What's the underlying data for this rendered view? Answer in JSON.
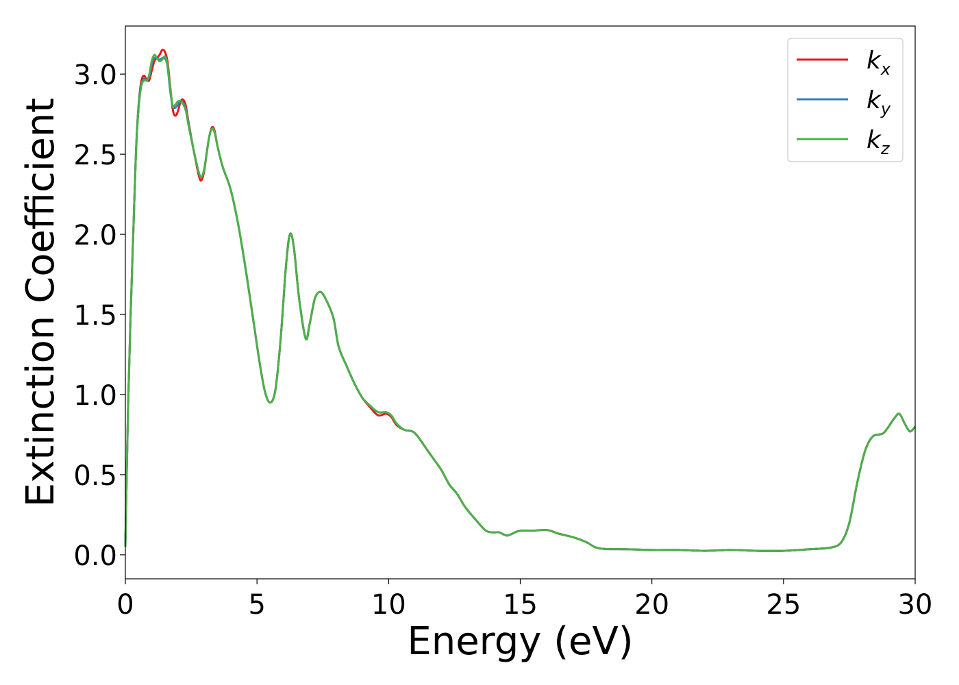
{
  "chart_data": {
    "type": "line",
    "title": "",
    "xlabel": "Energy (eV)",
    "ylabel": "Extinction Coefficient",
    "xlim": [
      0,
      30
    ],
    "ylim": [
      -0.15,
      3.3
    ],
    "xticks": [
      0,
      5,
      10,
      15,
      20,
      25,
      30
    ],
    "xtick_labels": [
      "0",
      "5",
      "10",
      "15",
      "20",
      "25",
      "30"
    ],
    "yticks": [
      0.0,
      0.5,
      1.0,
      1.5,
      2.0,
      2.5,
      3.0
    ],
    "ytick_labels": [
      "0.0",
      "0.5",
      "1.0",
      "1.5",
      "2.0",
      "2.5",
      "3.0"
    ],
    "grid": false,
    "legend_position": "top-right",
    "series": [
      {
        "name": "k_x",
        "label_base": "k",
        "label_sub": "x",
        "color": "#e41a1c",
        "points": [
          [
            0,
            0.05
          ],
          [
            0.1,
            0.9
          ],
          [
            0.2,
            1.5
          ],
          [
            0.3,
            2.0
          ],
          [
            0.4,
            2.5
          ],
          [
            0.5,
            2.8
          ],
          [
            0.6,
            2.95
          ],
          [
            0.7,
            2.99
          ],
          [
            0.8,
            2.97
          ],
          [
            0.9,
            2.96
          ],
          [
            1.0,
            3.02
          ],
          [
            1.1,
            3.08
          ],
          [
            1.2,
            3.1
          ],
          [
            1.3,
            3.12
          ],
          [
            1.4,
            3.15
          ],
          [
            1.5,
            3.14
          ],
          [
            1.6,
            3.08
          ],
          [
            1.7,
            2.93
          ],
          [
            1.8,
            2.78
          ],
          [
            1.9,
            2.74
          ],
          [
            2.0,
            2.77
          ],
          [
            2.1,
            2.83
          ],
          [
            2.2,
            2.84
          ],
          [
            2.3,
            2.8
          ],
          [
            2.4,
            2.7
          ],
          [
            2.6,
            2.52
          ],
          [
            2.8,
            2.36
          ],
          [
            2.9,
            2.34
          ],
          [
            3.0,
            2.4
          ],
          [
            3.1,
            2.52
          ],
          [
            3.2,
            2.62
          ],
          [
            3.3,
            2.67
          ],
          [
            3.4,
            2.64
          ],
          [
            3.5,
            2.55
          ],
          [
            3.7,
            2.42
          ],
          [
            4.0,
            2.28
          ],
          [
            4.3,
            2.05
          ],
          [
            4.6,
            1.75
          ],
          [
            4.9,
            1.42
          ],
          [
            5.1,
            1.2
          ],
          [
            5.3,
            1.02
          ],
          [
            5.5,
            0.95
          ],
          [
            5.7,
            1.03
          ],
          [
            5.9,
            1.35
          ],
          [
            6.1,
            1.8
          ],
          [
            6.25,
            2.0
          ],
          [
            6.4,
            1.92
          ],
          [
            6.6,
            1.6
          ],
          [
            6.85,
            1.35
          ],
          [
            7.0,
            1.44
          ],
          [
            7.2,
            1.6
          ],
          [
            7.4,
            1.64
          ],
          [
            7.6,
            1.6
          ],
          [
            7.9,
            1.48
          ],
          [
            8.1,
            1.3
          ],
          [
            8.4,
            1.18
          ],
          [
            8.7,
            1.07
          ],
          [
            9.0,
            0.98
          ],
          [
            9.3,
            0.92
          ],
          [
            9.6,
            0.87
          ],
          [
            9.9,
            0.88
          ],
          [
            10.1,
            0.86
          ],
          [
            10.3,
            0.81
          ],
          [
            10.6,
            0.78
          ],
          [
            10.9,
            0.77
          ],
          [
            11.1,
            0.74
          ],
          [
            11.4,
            0.67
          ],
          [
            11.7,
            0.6
          ],
          [
            12.0,
            0.53
          ],
          [
            12.3,
            0.44
          ],
          [
            12.6,
            0.38
          ],
          [
            12.9,
            0.3
          ],
          [
            13.3,
            0.22
          ],
          [
            13.7,
            0.15
          ],
          [
            14.0,
            0.14
          ],
          [
            14.2,
            0.14
          ],
          [
            14.5,
            0.12
          ],
          [
            14.8,
            0.14
          ],
          [
            15.0,
            0.15
          ],
          [
            15.5,
            0.15
          ],
          [
            16.0,
            0.155
          ],
          [
            16.5,
            0.13
          ],
          [
            17.0,
            0.11
          ],
          [
            17.5,
            0.08
          ],
          [
            18.0,
            0.04
          ],
          [
            19.0,
            0.035
          ],
          [
            20.0,
            0.03
          ],
          [
            21.0,
            0.03
          ],
          [
            22.0,
            0.025
          ],
          [
            23.0,
            0.03
          ],
          [
            24.0,
            0.025
          ],
          [
            25.0,
            0.025
          ],
          [
            26.0,
            0.035
          ],
          [
            26.8,
            0.045
          ],
          [
            27.2,
            0.08
          ],
          [
            27.5,
            0.2
          ],
          [
            27.8,
            0.45
          ],
          [
            28.1,
            0.65
          ],
          [
            28.4,
            0.74
          ],
          [
            28.8,
            0.76
          ],
          [
            29.2,
            0.85
          ],
          [
            29.4,
            0.88
          ],
          [
            29.6,
            0.82
          ],
          [
            29.8,
            0.77
          ],
          [
            30.0,
            0.8
          ]
        ]
      },
      {
        "name": "k_y",
        "label_base": "k",
        "label_sub": "y",
        "color": "#377eb8",
        "points": [
          [
            0,
            0.05
          ],
          [
            0.1,
            0.9
          ],
          [
            0.2,
            1.5
          ],
          [
            0.3,
            2.0
          ],
          [
            0.4,
            2.5
          ],
          [
            0.5,
            2.8
          ],
          [
            0.6,
            2.93
          ],
          [
            0.7,
            2.97
          ],
          [
            0.8,
            2.96
          ],
          [
            0.9,
            2.98
          ],
          [
            1.0,
            3.06
          ],
          [
            1.1,
            3.1
          ],
          [
            1.2,
            3.1
          ],
          [
            1.3,
            3.09
          ],
          [
            1.4,
            3.1
          ],
          [
            1.5,
            3.1
          ],
          [
            1.6,
            3.05
          ],
          [
            1.7,
            2.9
          ],
          [
            1.8,
            2.8
          ],
          [
            1.9,
            2.79
          ],
          [
            2.0,
            2.81
          ],
          [
            2.1,
            2.83
          ],
          [
            2.2,
            2.82
          ],
          [
            2.3,
            2.78
          ],
          [
            2.4,
            2.69
          ],
          [
            2.6,
            2.52
          ],
          [
            2.8,
            2.38
          ],
          [
            2.9,
            2.36
          ],
          [
            3.0,
            2.41
          ],
          [
            3.1,
            2.52
          ],
          [
            3.2,
            2.62
          ],
          [
            3.3,
            2.66
          ],
          [
            3.4,
            2.63
          ],
          [
            3.5,
            2.55
          ],
          [
            3.7,
            2.42
          ],
          [
            4.0,
            2.28
          ],
          [
            4.3,
            2.05
          ],
          [
            4.6,
            1.75
          ],
          [
            4.9,
            1.42
          ],
          [
            5.1,
            1.2
          ],
          [
            5.3,
            1.02
          ],
          [
            5.5,
            0.95
          ],
          [
            5.7,
            1.03
          ],
          [
            5.9,
            1.35
          ],
          [
            6.1,
            1.8
          ],
          [
            6.25,
            2.0
          ],
          [
            6.4,
            1.92
          ],
          [
            6.6,
            1.6
          ],
          [
            6.85,
            1.35
          ],
          [
            7.0,
            1.44
          ],
          [
            7.2,
            1.6
          ],
          [
            7.4,
            1.64
          ],
          [
            7.6,
            1.6
          ],
          [
            7.9,
            1.48
          ],
          [
            8.1,
            1.3
          ],
          [
            8.4,
            1.18
          ],
          [
            8.7,
            1.07
          ],
          [
            9.0,
            0.98
          ],
          [
            9.3,
            0.93
          ],
          [
            9.6,
            0.89
          ],
          [
            9.9,
            0.89
          ],
          [
            10.1,
            0.87
          ],
          [
            10.3,
            0.82
          ],
          [
            10.6,
            0.78
          ],
          [
            10.9,
            0.77
          ],
          [
            11.1,
            0.74
          ],
          [
            11.4,
            0.67
          ],
          [
            11.7,
            0.6
          ],
          [
            12.0,
            0.53
          ],
          [
            12.3,
            0.44
          ],
          [
            12.6,
            0.38
          ],
          [
            12.9,
            0.3
          ],
          [
            13.3,
            0.22
          ],
          [
            13.7,
            0.15
          ],
          [
            14.0,
            0.14
          ],
          [
            14.2,
            0.14
          ],
          [
            14.5,
            0.12
          ],
          [
            14.8,
            0.14
          ],
          [
            15.0,
            0.15
          ],
          [
            15.5,
            0.15
          ],
          [
            16.0,
            0.155
          ],
          [
            16.5,
            0.13
          ],
          [
            17.0,
            0.11
          ],
          [
            17.5,
            0.08
          ],
          [
            18.0,
            0.04
          ],
          [
            19.0,
            0.035
          ],
          [
            20.0,
            0.03
          ],
          [
            21.0,
            0.03
          ],
          [
            22.0,
            0.025
          ],
          [
            23.0,
            0.03
          ],
          [
            24.0,
            0.025
          ],
          [
            25.0,
            0.025
          ],
          [
            26.0,
            0.035
          ],
          [
            26.8,
            0.045
          ],
          [
            27.2,
            0.08
          ],
          [
            27.5,
            0.2
          ],
          [
            27.8,
            0.45
          ],
          [
            28.1,
            0.65
          ],
          [
            28.4,
            0.74
          ],
          [
            28.8,
            0.76
          ],
          [
            29.2,
            0.85
          ],
          [
            29.4,
            0.88
          ],
          [
            29.6,
            0.82
          ],
          [
            29.8,
            0.77
          ],
          [
            30.0,
            0.8
          ]
        ]
      },
      {
        "name": "k_z",
        "label_base": "k",
        "label_sub": "z",
        "color": "#4daf4a",
        "points": [
          [
            0,
            0.05
          ],
          [
            0.1,
            0.9
          ],
          [
            0.2,
            1.5
          ],
          [
            0.3,
            2.0
          ],
          [
            0.4,
            2.5
          ],
          [
            0.5,
            2.78
          ],
          [
            0.6,
            2.92
          ],
          [
            0.7,
            2.96
          ],
          [
            0.8,
            2.96
          ],
          [
            0.9,
            2.99
          ],
          [
            1.0,
            3.08
          ],
          [
            1.1,
            3.12
          ],
          [
            1.2,
            3.1
          ],
          [
            1.3,
            3.08
          ],
          [
            1.4,
            3.09
          ],
          [
            1.5,
            3.11
          ],
          [
            1.6,
            3.06
          ],
          [
            1.7,
            2.92
          ],
          [
            1.8,
            2.8
          ],
          [
            1.9,
            2.81
          ],
          [
            2.0,
            2.83
          ],
          [
            2.1,
            2.83
          ],
          [
            2.2,
            2.81
          ],
          [
            2.3,
            2.77
          ],
          [
            2.4,
            2.68
          ],
          [
            2.6,
            2.52
          ],
          [
            2.8,
            2.38
          ],
          [
            2.9,
            2.36
          ],
          [
            3.0,
            2.41
          ],
          [
            3.1,
            2.52
          ],
          [
            3.2,
            2.62
          ],
          [
            3.3,
            2.66
          ],
          [
            3.4,
            2.63
          ],
          [
            3.5,
            2.55
          ],
          [
            3.7,
            2.42
          ],
          [
            4.0,
            2.28
          ],
          [
            4.3,
            2.05
          ],
          [
            4.6,
            1.75
          ],
          [
            4.9,
            1.42
          ],
          [
            5.1,
            1.2
          ],
          [
            5.3,
            1.02
          ],
          [
            5.5,
            0.95
          ],
          [
            5.7,
            1.03
          ],
          [
            5.9,
            1.35
          ],
          [
            6.1,
            1.8
          ],
          [
            6.25,
            2.0
          ],
          [
            6.4,
            1.92
          ],
          [
            6.6,
            1.6
          ],
          [
            6.85,
            1.35
          ],
          [
            7.0,
            1.44
          ],
          [
            7.2,
            1.6
          ],
          [
            7.4,
            1.64
          ],
          [
            7.6,
            1.6
          ],
          [
            7.9,
            1.48
          ],
          [
            8.1,
            1.3
          ],
          [
            8.4,
            1.18
          ],
          [
            8.7,
            1.07
          ],
          [
            9.0,
            0.98
          ],
          [
            9.3,
            0.93
          ],
          [
            9.6,
            0.89
          ],
          [
            9.9,
            0.89
          ],
          [
            10.1,
            0.87
          ],
          [
            10.3,
            0.82
          ],
          [
            10.6,
            0.78
          ],
          [
            10.9,
            0.77
          ],
          [
            11.1,
            0.74
          ],
          [
            11.4,
            0.67
          ],
          [
            11.7,
            0.6
          ],
          [
            12.0,
            0.53
          ],
          [
            12.3,
            0.44
          ],
          [
            12.6,
            0.38
          ],
          [
            12.9,
            0.3
          ],
          [
            13.3,
            0.22
          ],
          [
            13.7,
            0.15
          ],
          [
            14.0,
            0.14
          ],
          [
            14.2,
            0.14
          ],
          [
            14.5,
            0.12
          ],
          [
            14.8,
            0.14
          ],
          [
            15.0,
            0.15
          ],
          [
            15.5,
            0.15
          ],
          [
            16.0,
            0.155
          ],
          [
            16.5,
            0.13
          ],
          [
            17.0,
            0.11
          ],
          [
            17.5,
            0.08
          ],
          [
            18.0,
            0.04
          ],
          [
            19.0,
            0.035
          ],
          [
            20.0,
            0.03
          ],
          [
            21.0,
            0.03
          ],
          [
            22.0,
            0.025
          ],
          [
            23.0,
            0.03
          ],
          [
            24.0,
            0.025
          ],
          [
            25.0,
            0.025
          ],
          [
            26.0,
            0.035
          ],
          [
            26.8,
            0.045
          ],
          [
            27.2,
            0.08
          ],
          [
            27.5,
            0.2
          ],
          [
            27.8,
            0.45
          ],
          [
            28.1,
            0.65
          ],
          [
            28.4,
            0.74
          ],
          [
            28.8,
            0.76
          ],
          [
            29.2,
            0.85
          ],
          [
            29.4,
            0.88
          ],
          [
            29.6,
            0.82
          ],
          [
            29.8,
            0.77
          ],
          [
            30.0,
            0.8
          ]
        ]
      }
    ]
  }
}
